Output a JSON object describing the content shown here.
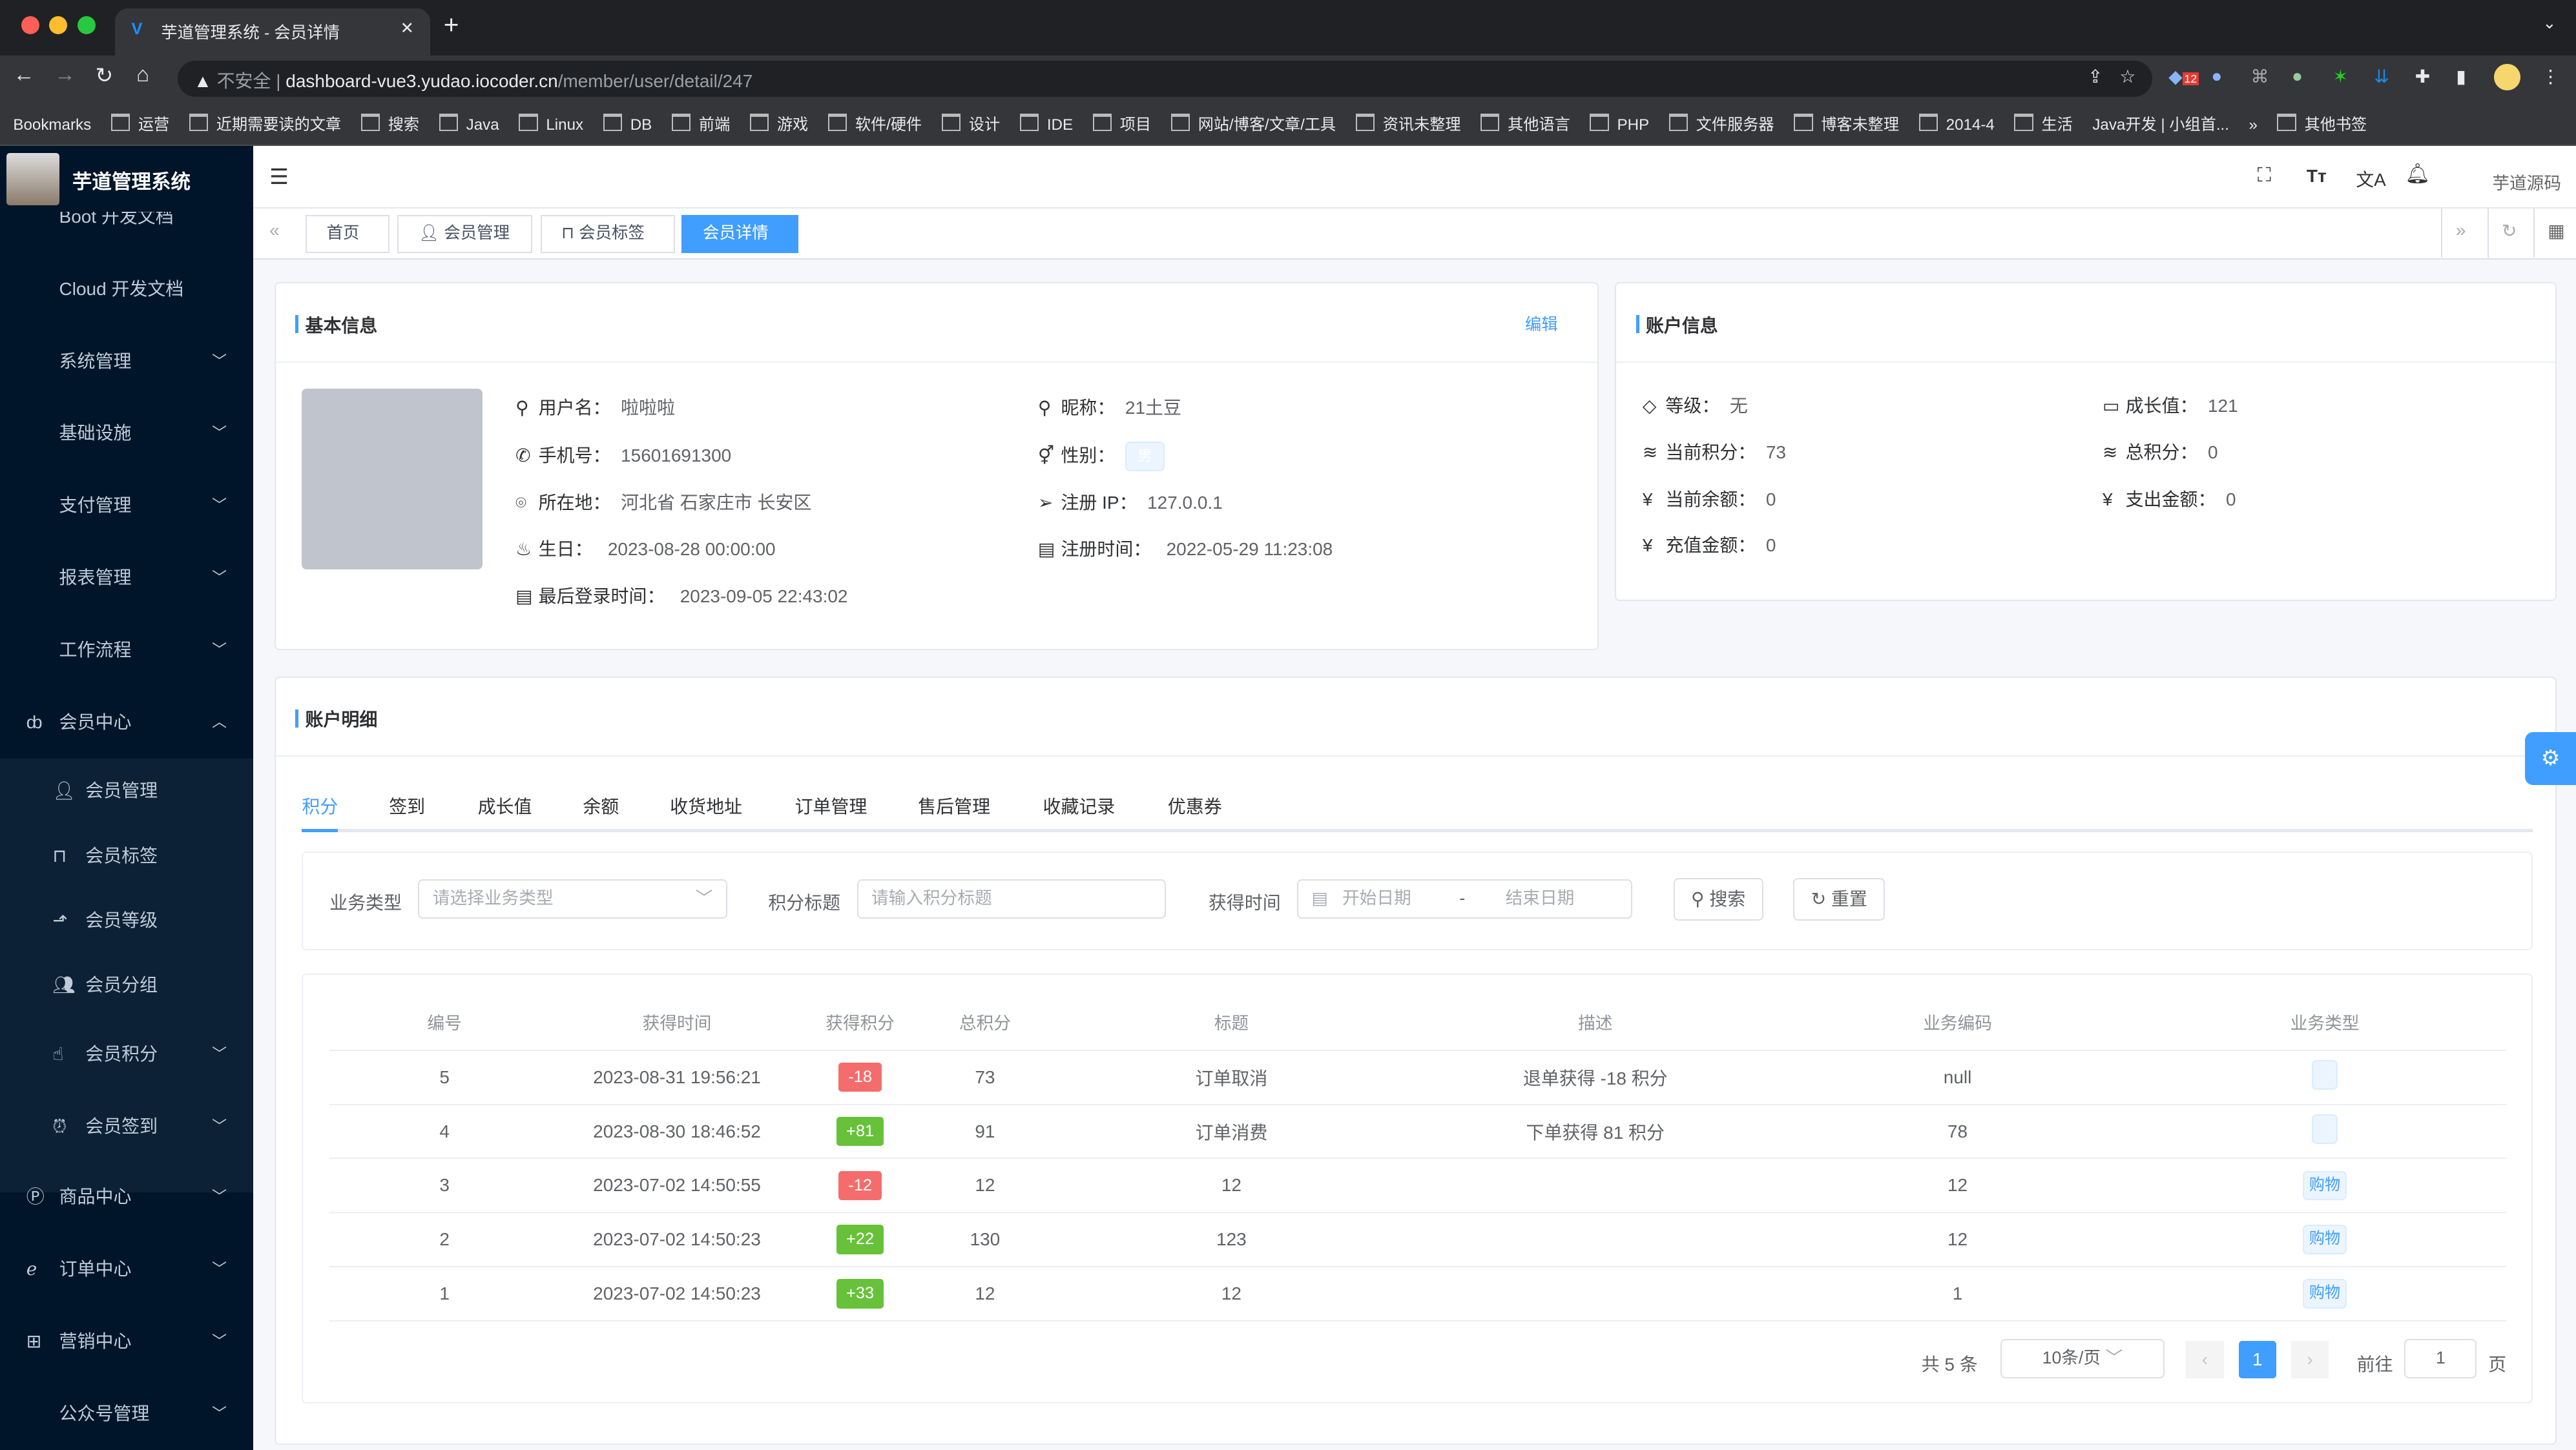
{
  "browser": {
    "tab_title": "芋道管理系统 - 会员详情",
    "insecure_label": "不安全",
    "url_host": "dashboard-vue3.yudao.iocoder.cn",
    "url_path": "/member/user/detail/247",
    "extension_badge": "12",
    "bookmarks": [
      "Bookmarks",
      "运营",
      "近期需要读的文章",
      "搜索",
      "Java",
      "Linux",
      "DB",
      "前端",
      "游戏",
      "软件/硬件",
      "设计",
      "IDE",
      "项目",
      "网站/博客/文章/工具",
      "资讯未整理",
      "其他语言",
      "PHP",
      "文件服务器",
      "博客未整理",
      "2014-4",
      "生活",
      "Java开发 | 小组首...",
      "»",
      "其他书签"
    ]
  },
  "app": {
    "title": "芋道管理系统",
    "header_link": "芋道源码",
    "colors": {
      "primary": "#409eff",
      "sidebar": "#001529",
      "danger": "#f56c6c",
      "success": "#67c23a"
    }
  },
  "sidebar": {
    "items": [
      {
        "label": "Boot 开发文档"
      },
      {
        "label": "Cloud 开发文档"
      },
      {
        "label": "系统管理",
        "icon": "chevron-down"
      },
      {
        "label": "基础设施",
        "icon": "chevron-down"
      },
      {
        "label": "支付管理",
        "icon": "chevron-down"
      },
      {
        "label": "报表管理",
        "icon": "chevron-down"
      },
      {
        "label": "工作流程",
        "icon": "chevron-down"
      },
      {
        "label": "会员中心",
        "icon": "bicycle",
        "expanded": true
      },
      {
        "label": "商品中心",
        "icon": "product"
      },
      {
        "label": "订单中心",
        "icon": "order"
      },
      {
        "label": "营销中心",
        "icon": "gift"
      },
      {
        "label": "公众号管理"
      }
    ],
    "member_sub": [
      {
        "label": "会员管理",
        "icon": "user"
      },
      {
        "label": "会员标签",
        "icon": "bookmark"
      },
      {
        "label": "会员等级",
        "icon": "level-up"
      },
      {
        "label": "会员分组",
        "icon": "group"
      },
      {
        "label": "会员积分",
        "icon": "hand-pointer"
      },
      {
        "label": "会员签到",
        "icon": "alarm"
      }
    ]
  },
  "tags_view": [
    {
      "label": "首页"
    },
    {
      "label": "会员管理"
    },
    {
      "label": "会员标签"
    },
    {
      "label": "会员详情",
      "active": true
    }
  ],
  "basic_info": {
    "title": "基本信息",
    "edit_label": "编辑",
    "fields": {
      "username": {
        "label": "用户名：",
        "value": "啦啦啦"
      },
      "nickname": {
        "label": "昵称：",
        "value": "21土豆"
      },
      "mobile": {
        "label": "手机号：",
        "value": "15601691300"
      },
      "sex": {
        "label": "性别：",
        "value": "男"
      },
      "area": {
        "label": "所在地：",
        "value": "河北省 石家庄市 长安区"
      },
      "register_ip": {
        "label": "注册 IP：",
        "value": "127.0.0.1"
      },
      "birthday": {
        "label": "生日：",
        "value": "2023-08-28 00:00:00"
      },
      "register_time": {
        "label": "注册时间：",
        "value": "2022-05-29 11:23:08"
      },
      "login_time": {
        "label": "最后登录时间：",
        "value": "2023-09-05 22:43:02"
      }
    }
  },
  "account_info": {
    "title": "账户信息",
    "fields": {
      "level": {
        "label": "等级：",
        "value": "无"
      },
      "experience": {
        "label": "成长值：",
        "value": "121"
      },
      "point": {
        "label": "当前积分：",
        "value": "73"
      },
      "total_point": {
        "label": "总积分：",
        "value": "0"
      },
      "balance": {
        "label": "当前余额：",
        "value": "0"
      },
      "expense": {
        "label": "支出金额：",
        "value": "0"
      },
      "recharge": {
        "label": "充值金额：",
        "value": "0"
      }
    }
  },
  "account_detail": {
    "title": "账户明细",
    "tabs": [
      "积分",
      "签到",
      "成长值",
      "余额",
      "收货地址",
      "订单管理",
      "售后管理",
      "收藏记录",
      "优惠券"
    ],
    "filter": {
      "biz_type_label": "业务类型",
      "biz_type_placeholder": "请选择业务类型",
      "title_label": "积分标题",
      "title_placeholder": "请输入积分标题",
      "time_label": "获得时间",
      "start_placeholder": "开始日期",
      "range_sep": "-",
      "end_placeholder": "结束日期",
      "search": "搜索",
      "reset": "重置"
    },
    "columns": [
      "编号",
      "获得时间",
      "获得积分",
      "总积分",
      "标题",
      "描述",
      "业务编码",
      "业务类型"
    ],
    "rows": [
      {
        "id": "5",
        "time": "2023-08-31 19:56:21",
        "point": "-18",
        "total": "73",
        "title": "订单取消",
        "desc": "退单获得 -18 积分",
        "biz_id": "null",
        "biz_type": ""
      },
      {
        "id": "4",
        "time": "2023-08-30 18:46:52",
        "point": "+81",
        "total": "91",
        "title": "订单消费",
        "desc": "下单获得 81 积分",
        "biz_id": "78",
        "biz_type": ""
      },
      {
        "id": "3",
        "time": "2023-07-02 14:50:55",
        "point": "-12",
        "total": "12",
        "title": "12",
        "desc": "",
        "biz_id": "12",
        "biz_type": "购物"
      },
      {
        "id": "2",
        "time": "2023-07-02 14:50:23",
        "point": "+22",
        "total": "130",
        "title": "123",
        "desc": "",
        "biz_id": "12",
        "biz_type": "购物"
      },
      {
        "id": "1",
        "time": "2023-07-02 14:50:23",
        "point": "+33",
        "total": "12",
        "title": "12",
        "desc": "",
        "biz_id": "1",
        "biz_type": "购物"
      }
    ],
    "pagination": {
      "total": "共 5 条",
      "page_size": "10条/页",
      "current": "1",
      "goto_label": "前往",
      "goto_value": "1",
      "page_unit": "页"
    }
  }
}
